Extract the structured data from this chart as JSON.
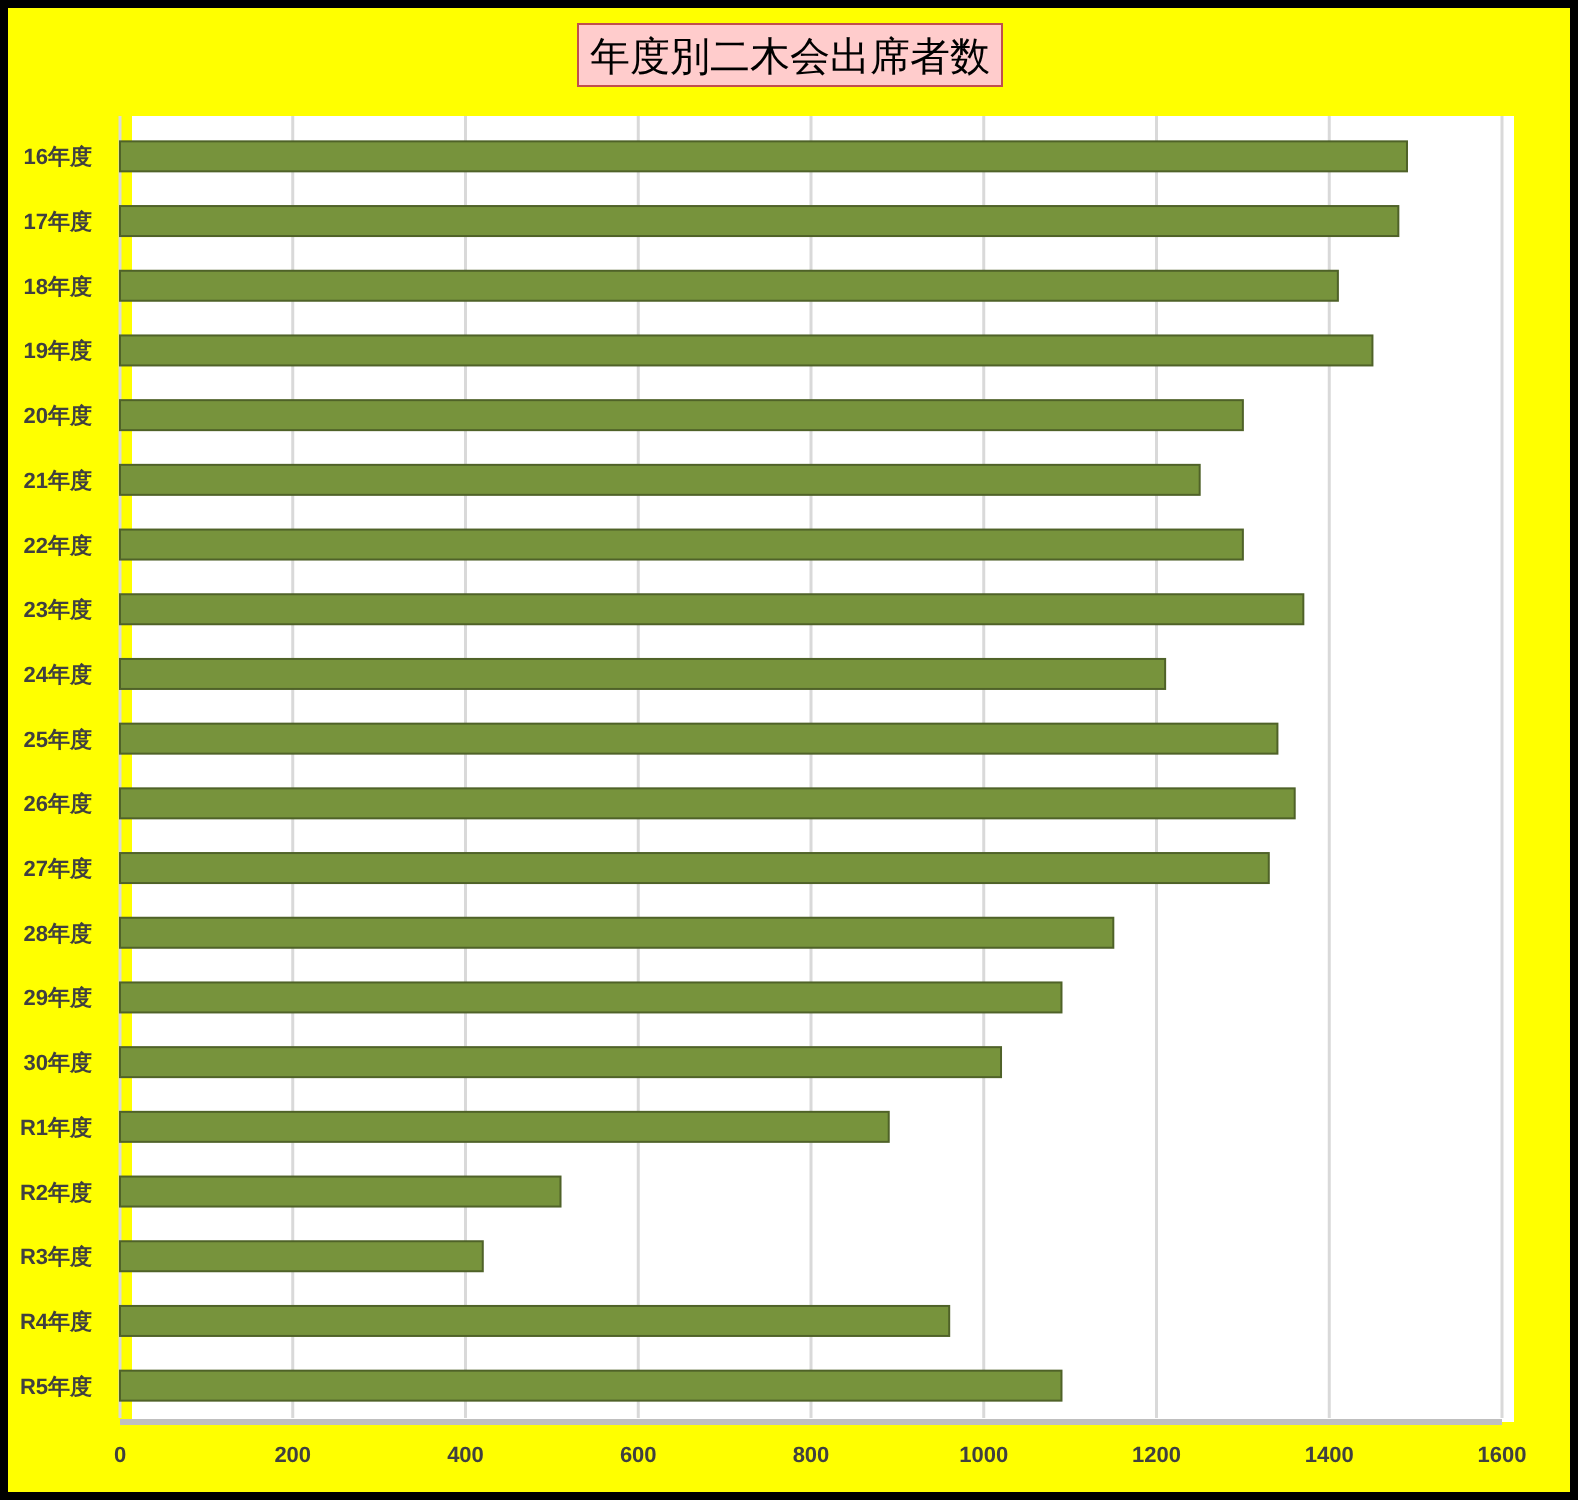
{
  "chart_data": {
    "type": "bar",
    "orientation": "horizontal",
    "title": "年度別二木会出席者数",
    "categories": [
      "16年度",
      "17年度",
      "18年度",
      "19年度",
      "20年度",
      "21年度",
      "22年度",
      "23年度",
      "24年度",
      "25年度",
      "26年度",
      "27年度",
      "28年度",
      "29年度",
      "30年度",
      "R1年度",
      "R2年度",
      "R3年度",
      "R4年度",
      "R5年度"
    ],
    "values": [
      1490,
      1480,
      1410,
      1450,
      1300,
      1250,
      1300,
      1370,
      1210,
      1340,
      1360,
      1330,
      1150,
      1090,
      1020,
      890,
      510,
      420,
      960,
      1090
    ],
    "color": "#77933c",
    "xlim": [
      0,
      1600
    ],
    "xticks": [
      0,
      200,
      400,
      600,
      800,
      1000,
      1200,
      1400,
      1600
    ],
    "grid": "x"
  }
}
